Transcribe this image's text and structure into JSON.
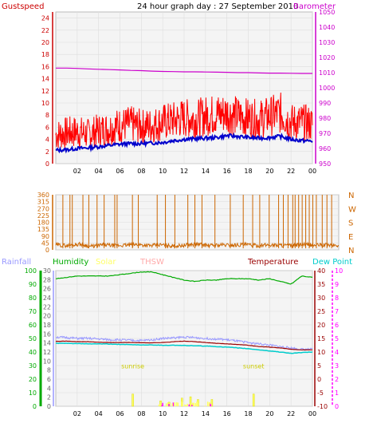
{
  "header": {
    "left_label": "Gustspeed",
    "title": "24 hour graph day : 27 September 2010",
    "right_label": "Barometer"
  },
  "colors": {
    "gust": "#ff0000",
    "wind_avg": "#0000cc",
    "barometer": "#cc00cc",
    "wind_dir": "#cc6600",
    "rain": "#9999ff",
    "humidity": "#00aa00",
    "solar": "#ffff66",
    "thsw": "#ffaaaa",
    "temperature": "#990000",
    "dew_point": "#00cccc",
    "uv": "#ff00ff",
    "grid": "#dddddd",
    "panel": "#f4f4f4"
  },
  "x_axis": {
    "ticks": [
      "02",
      "04",
      "06",
      "08",
      "10",
      "12",
      "14",
      "16",
      "18",
      "20",
      "22",
      "00"
    ]
  },
  "chart_data": [
    {
      "type": "line",
      "name_id": "wind-barometer",
      "left_axis": {
        "label": "Gustspeed",
        "ticks": [
          0,
          2,
          4,
          6,
          8,
          10,
          12,
          14,
          16,
          18,
          20,
          22,
          24
        ],
        "ylim": [
          0,
          25
        ]
      },
      "right_axis": {
        "label": "Barometer",
        "ticks": [
          950,
          960,
          970,
          980,
          990,
          1000,
          1010,
          1020,
          1030,
          1040,
          1050
        ],
        "ylim": [
          950,
          1050
        ]
      },
      "x": [
        0,
        1,
        2,
        3,
        4,
        5,
        6,
        7,
        8,
        9,
        10,
        11,
        12,
        13,
        14,
        15,
        16,
        17,
        18,
        19,
        20,
        21,
        22,
        23,
        24
      ],
      "series": [
        {
          "name": "Gustspeed",
          "axis": "left",
          "color_key": "gust",
          "values": [
            4.5,
            4.8,
            5.0,
            4.6,
            5.2,
            5.5,
            6.0,
            6.2,
            5.8,
            6.0,
            6.5,
            6.8,
            7.2,
            7.0,
            7.5,
            7.8,
            8.0,
            7.5,
            7.2,
            7.0,
            7.5,
            8.0,
            6.5,
            6.5,
            6.2
          ]
        },
        {
          "name": "",
          "axis": "left",
          "color_key": "wind_avg",
          "values": [
            2.2,
            2.3,
            2.5,
            2.6,
            2.8,
            3.0,
            3.2,
            3.3,
            3.3,
            3.4,
            3.5,
            3.8,
            4.0,
            4.1,
            4.2,
            4.3,
            4.6,
            4.5,
            4.3,
            4.2,
            4.3,
            4.5,
            4.0,
            3.8,
            3.7
          ]
        },
        {
          "name": "Barometer",
          "axis": "right",
          "color_key": "barometer",
          "values": [
            1013,
            1013,
            1012.8,
            1012.5,
            1012.2,
            1012,
            1011.8,
            1011.5,
            1011.3,
            1011,
            1010.8,
            1010.7,
            1010.5,
            1010.5,
            1010.4,
            1010.3,
            1010.2,
            1010,
            1010,
            1009.8,
            1009.7,
            1009.7,
            1009.6,
            1009.5,
            1009.5
          ]
        }
      ]
    },
    {
      "type": "line",
      "name_id": "wind-direction",
      "left_axis": {
        "ticks": [
          0,
          45,
          90,
          135,
          180,
          225,
          270,
          315,
          360
        ],
        "ylim": [
          0,
          360
        ]
      },
      "right_axis": {
        "labels": [
          "N",
          "W",
          "S",
          "E",
          "N"
        ]
      },
      "x": [
        0,
        1,
        2,
        3,
        4,
        5,
        6,
        7,
        8,
        9,
        10,
        11,
        12,
        13,
        14,
        15,
        16,
        17,
        18,
        19,
        20,
        21,
        22,
        23,
        24
      ],
      "series": [
        {
          "name": "",
          "color_key": "wind_dir",
          "values": [
            20,
            15,
            25,
            10,
            20,
            15,
            18,
            22,
            15,
            20,
            12,
            18,
            25,
            15,
            20,
            18,
            22,
            15,
            20,
            18,
            15,
            22,
            18,
            20,
            15
          ]
        }
      ],
      "spike_times": [
        0.6,
        1.2,
        1.4,
        2.3,
        2.8,
        3.5,
        4.1,
        5.0,
        5.2,
        6.5,
        7.0,
        8.6,
        9.3,
        10.1,
        11.2,
        11.8,
        12.4,
        13.5,
        14.8,
        15.9,
        16.7,
        17.3,
        18.1,
        18.9,
        19.3,
        19.7,
        20.1,
        20.3,
        20.6,
        20.9,
        21.2,
        21.5,
        21.8,
        22.1,
        22.6,
        23.0,
        23.4
      ]
    },
    {
      "type": "line",
      "name_id": "temp-humidity",
      "legend": [
        "Rainfall",
        "Humidity",
        "Solar",
        "THSW",
        "Temperature",
        "Dew Point"
      ],
      "axes": {
        "humidity": {
          "ticks": [
            0,
            10,
            20,
            30,
            40,
            50,
            60,
            70,
            80,
            90,
            100
          ],
          "ylim": [
            0,
            100
          ]
        },
        "rainfall": {
          "ticks": [
            0,
            2,
            4,
            6,
            8,
            10,
            12,
            14,
            16,
            18,
            20,
            22,
            24,
            26,
            28,
            30
          ],
          "ylim": [
            0,
            30
          ]
        },
        "temperature": {
          "ticks": [
            -10,
            -5,
            0,
            5,
            10,
            15,
            20,
            25,
            30,
            35,
            40
          ],
          "ylim": [
            -10,
            40
          ]
        },
        "uv": {
          "ticks": [
            0,
            1,
            2,
            3,
            4,
            5,
            6,
            7,
            8,
            9,
            10
          ],
          "ylim": [
            0,
            10
          ]
        }
      },
      "x": [
        0,
        1,
        2,
        3,
        4,
        5,
        6,
        7,
        8,
        9,
        10,
        11,
        12,
        13,
        14,
        15,
        16,
        17,
        18,
        19,
        20,
        21,
        22,
        23,
        24
      ],
      "series": [
        {
          "name": "Humidity",
          "axis": "humidity",
          "color_key": "humidity",
          "values": [
            94,
            95,
            96,
            96,
            96,
            96,
            97,
            98,
            99,
            99,
            97,
            95,
            93,
            92,
            93,
            93,
            94,
            94,
            94,
            93,
            94,
            92,
            90,
            96,
            95
          ]
        },
        {
          "name": "THSW",
          "axis": "temperature",
          "color_key": "rain",
          "values": [
            15.5,
            15.3,
            15,
            15,
            14.8,
            14.5,
            14.5,
            14.3,
            14.2,
            14.5,
            15,
            15.2,
            15.5,
            15.3,
            15,
            14.8,
            14.5,
            14,
            13.5,
            13,
            12.5,
            12,
            11.5,
            11,
            11
          ]
        },
        {
          "name": "Temperature",
          "axis": "temperature",
          "color_key": "temperature",
          "values": [
            14,
            14,
            13.8,
            13.8,
            13.6,
            13.5,
            13.5,
            13.5,
            13.4,
            13.4,
            13.5,
            13.8,
            14,
            13.8,
            13.5,
            13.2,
            13,
            12.8,
            12.5,
            12,
            11.8,
            11.5,
            11,
            10.8,
            10.8
          ]
        },
        {
          "name": "Dew Point",
          "axis": "temperature",
          "color_key": "dew_point",
          "values": [
            13.2,
            13.2,
            13.1,
            13,
            13,
            12.9,
            12.8,
            12.7,
            12.6,
            12.6,
            12.5,
            12.5,
            12.4,
            12.3,
            12.2,
            12,
            11.8,
            11.5,
            11.2,
            10.8,
            10.4,
            10,
            9.5,
            9.8,
            10
          ]
        }
      ],
      "solar_bars": [
        {
          "x": 7.2,
          "uv": 0.9
        },
        {
          "x": 9.8,
          "uv": 0.4
        },
        {
          "x": 10.6,
          "uv": 0.3
        },
        {
          "x": 11.8,
          "uv": 0.6
        },
        {
          "x": 12.6,
          "uv": 0.7
        },
        {
          "x": 13.3,
          "uv": 0.5
        },
        {
          "x": 14.6,
          "uv": 0.5
        },
        {
          "x": 18.5,
          "uv": 0.9
        }
      ],
      "annotations": [
        {
          "text": "sunrise",
          "x": 7.2
        },
        {
          "text": "sunset",
          "x": 18.5
        }
      ]
    }
  ]
}
